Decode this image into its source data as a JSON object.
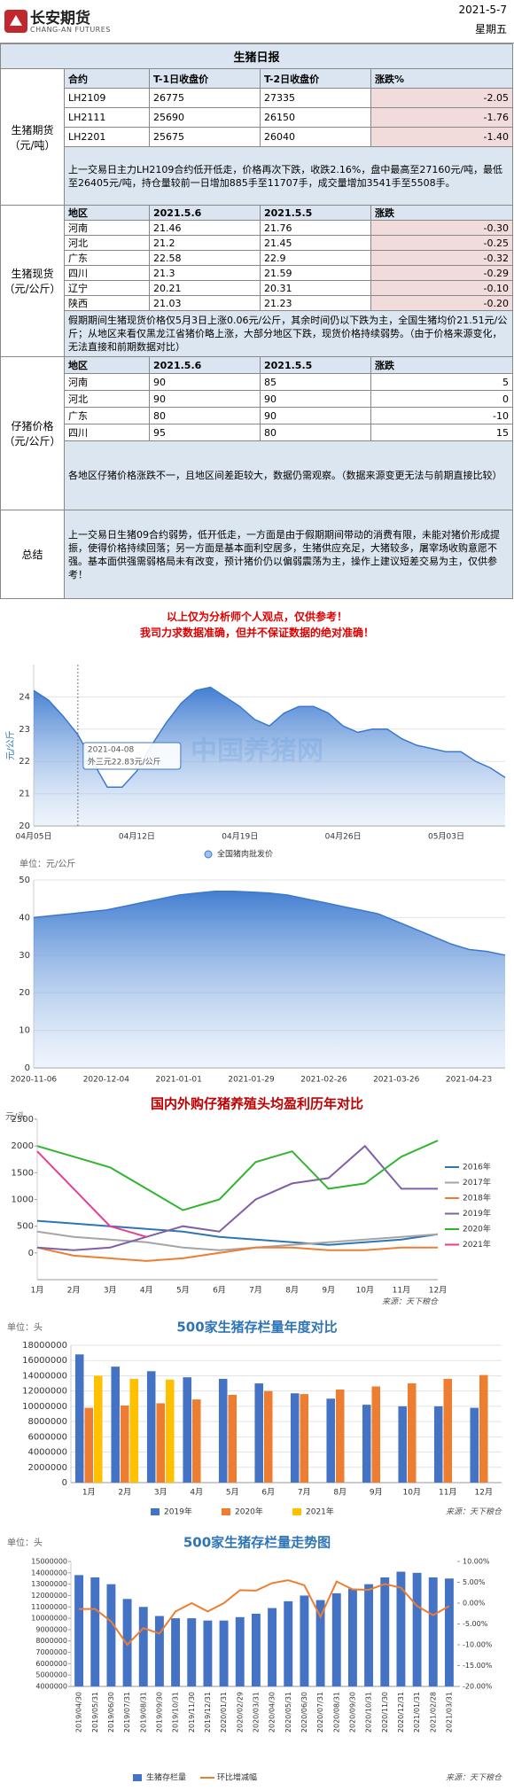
{
  "header": {
    "logo_cn": "长安期货",
    "logo_en": "CHANG-AN FUTURES",
    "date": "2021-5-7",
    "weekday": "星期五"
  },
  "report": {
    "title": "生猪日报",
    "change_bg": "#f2dcdb",
    "sections": [
      {
        "label": "生猪期货（元/吨）",
        "columns": [
          "合约",
          "T-1日收盘价",
          "T-2日收盘价",
          "涨跌%"
        ],
        "rows": [
          [
            "LH2109",
            "26775",
            "27335",
            "-2.05"
          ],
          [
            "LH2111",
            "25690",
            "26150",
            "-1.76"
          ],
          [
            "LH2201",
            "25675",
            "26040",
            "-1.40"
          ]
        ],
        "highlight_change": true,
        "note": "上一交易日主力LH2109合约低开低走，价格再次下跌，收跌2.16%，盘中最高至27160元/吨，最低至26405元/吨，持仓量较前一日增加885手至11707手，成交量增加3541手至5508手。"
      },
      {
        "label": "生猪现货（元/公斤）",
        "columns": [
          "地区",
          "2021.5.6",
          "2021.5.5",
          "涨跌"
        ],
        "rows": [
          [
            "河南",
            "21.46",
            "21.76",
            "-0.30"
          ],
          [
            "河北",
            "21.2",
            "21.45",
            "-0.25"
          ],
          [
            "广东",
            "22.58",
            "22.9",
            "-0.32"
          ],
          [
            "四川",
            "21.3",
            "21.59",
            "-0.29"
          ],
          [
            "辽宁",
            "20.21",
            "20.31",
            "-0.10"
          ],
          [
            "陕西",
            "21.03",
            "21.23",
            "-0.20"
          ]
        ],
        "highlight_change": true,
        "note": "假期期间生猪现货价格仅5月3日上涨0.06元/公斤，其余时间仍以下跌为主，全国生猪均价21.51元/公斤；从地区来看仅黑龙江省猪价略上涨，大部分地区下跌，现货价格持续弱势。（由于价格来源变化，无法直接和前期数据对比）"
      },
      {
        "label": "仔猪价格（元/公斤）",
        "columns": [
          "地区",
          "2021.5.6",
          "2021.5.5",
          "涨跌"
        ],
        "rows": [
          [
            "河南",
            "90",
            "85",
            "5"
          ],
          [
            "河北",
            "90",
            "90",
            "0"
          ],
          [
            "广东",
            "80",
            "90",
            "-10"
          ],
          [
            "四川",
            "95",
            "80",
            "15"
          ]
        ],
        "highlight_change": false,
        "note": "各地区仔猪价格涨跌不一，且地区间差距较大，数据仍需观察。（数据来源变更无法与前期直接比较）"
      },
      {
        "label": "总结",
        "note": "上一交易日生猪09合约弱势，低开低走，一方面是由于假期期间带动的消费有限，未能对猪价形成提振，使得价格持续回落；另一方面是基本面利空居多，生猪供应充足，大猪较多，屠宰场收购意愿不强。基本面供强需弱格局未有改变，预计猪价仍以偏弱震荡为主，操作上建议短差交易为主，仅供参考！"
      }
    ]
  },
  "disclaimer": [
    "以上仅为分析师个人观点，仅供参考！",
    "我司力求数据准确，但并不保证数据的绝对准确！"
  ],
  "chart_data": [
    {
      "type": "area",
      "y_label": "元/公斤",
      "watermark": "中国养猪网",
      "annotations": [
        "2021-04-08",
        "外三元22.83元/公斤"
      ],
      "categories": [
        "04月05日",
        null,
        null,
        null,
        null,
        null,
        null,
        "04月12日",
        null,
        null,
        null,
        null,
        null,
        null,
        "04月19日",
        null,
        null,
        null,
        null,
        null,
        null,
        "04月26日",
        null,
        null,
        null,
        null,
        null,
        null,
        "05月03日",
        null,
        null,
        null,
        null
      ],
      "series": [
        {
          "color": "#3a78cf",
          "values": [
            24.2,
            23.9,
            23.4,
            22.83,
            22.0,
            21.2,
            21.2,
            21.7,
            22.5,
            23.2,
            23.8,
            24.2,
            24.3,
            24.0,
            23.7,
            23.3,
            23.1,
            23.5,
            23.7,
            23.7,
            23.5,
            23.1,
            22.9,
            23.0,
            23.0,
            22.7,
            22.5,
            22.4,
            22.3,
            22.3,
            22.0,
            21.8,
            21.5
          ]
        }
      ],
      "ylim": [
        20,
        25
      ],
      "yticks": [
        20,
        21,
        22,
        23,
        24
      ],
      "grid": true
    },
    {
      "type": "area",
      "unit_label": "单位：元/公斤",
      "legend": "top",
      "categories": [
        "2020-11-06",
        null,
        null,
        null,
        "2020-12-04",
        null,
        null,
        null,
        "2021-01-01",
        null,
        null,
        null,
        "2021-01-29",
        null,
        null,
        null,
        "2021-02-26",
        null,
        null,
        null,
        "2021-03-26",
        null,
        null,
        null,
        "2021-04-23",
        null,
        null
      ],
      "series": [
        {
          "name": "全国猪肉批发价",
          "color": "#3a78cf",
          "values": [
            40,
            40.5,
            41,
            41.5,
            42,
            43,
            44,
            45,
            46,
            46.5,
            47,
            47,
            46.8,
            46.5,
            46,
            45,
            44,
            43,
            42,
            41,
            39,
            37,
            35,
            33,
            31.5,
            31,
            30
          ]
        }
      ],
      "ylim": [
        0,
        50
      ],
      "yticks": [
        0,
        10,
        20,
        30,
        40,
        50
      ],
      "grid": true
    },
    {
      "type": "line",
      "title": "国内外购仔猪养殖头均盈利历年对比",
      "title_color": "#c00000",
      "unit_label": "元/头",
      "source": "来源：天下粮仓",
      "legend": "right",
      "categories": [
        "1月",
        "2月",
        "3月",
        "4月",
        "5月",
        "6月",
        "7月",
        "8月",
        "9月",
        "10月",
        "11月",
        "12月"
      ],
      "series": [
        {
          "name": "2016年",
          "color": "#2e75b6",
          "values": [
            600,
            550,
            500,
            450,
            400,
            300,
            250,
            200,
            150,
            200,
            250,
            350
          ]
        },
        {
          "name": "2017年",
          "color": "#a5a5a5",
          "values": [
            400,
            300,
            250,
            200,
            100,
            50,
            100,
            150,
            200,
            250,
            300,
            350
          ]
        },
        {
          "name": "2018年",
          "color": "#ed7d31",
          "values": [
            100,
            -50,
            -100,
            -150,
            -100,
            0,
            100,
            100,
            50,
            50,
            100,
            100
          ]
        },
        {
          "name": "2019年",
          "color": "#7f60a8",
          "values": [
            100,
            50,
            100,
            300,
            500,
            400,
            1000,
            1300,
            1400,
            2000,
            1200,
            1200
          ]
        },
        {
          "name": "2020年",
          "color": "#2fb52f",
          "values": [
            2000,
            1800,
            1600,
            1200,
            800,
            1000,
            1700,
            1900,
            1200,
            1300,
            1800,
            2100
          ]
        },
        {
          "name": "2021年",
          "color": "#e83e8c",
          "values": [
            1900,
            1200,
            500,
            300,
            null,
            null,
            null,
            null,
            null,
            null,
            null,
            null
          ]
        }
      ],
      "ylim": [
        -500,
        2500
      ],
      "yticks": [
        0,
        500,
        1000,
        1500,
        2000,
        2500
      ],
      "grid": false
    },
    {
      "type": "bar",
      "title": "500家生猪存栏量年度对比",
      "title_color": "#2e75b6",
      "unit_label": "单位：头",
      "source": "来源：天下粮仓",
      "legend": "bottom",
      "categories": [
        "1月",
        "2月",
        "3月",
        "4月",
        "5月",
        "6月",
        "7月",
        "8月",
        "9月",
        "10月",
        "11月",
        "12月"
      ],
      "series": [
        {
          "name": "2019年",
          "color": "#4472c4",
          "values": [
            16800000,
            15200000,
            14600000,
            13800000,
            13600000,
            13000000,
            11700000,
            11000000,
            10200000,
            10000000,
            10000000,
            9800000
          ]
        },
        {
          "name": "2020年",
          "color": "#ed7d31",
          "values": [
            9800000,
            10100000,
            10400000,
            10900000,
            11500000,
            12000000,
            11600000,
            12200000,
            12600000,
            13000000,
            13600000,
            14100000
          ]
        },
        {
          "name": "2021年",
          "color": "#ffc000",
          "values": [
            14000000,
            13600000,
            13500000,
            null,
            null,
            null,
            null,
            null,
            null,
            null,
            null,
            null
          ]
        }
      ],
      "ylim": [
        0,
        18000000
      ],
      "yticks": [
        0,
        2000000,
        4000000,
        6000000,
        8000000,
        10000000,
        12000000,
        14000000,
        16000000,
        18000000
      ],
      "grid": true
    },
    {
      "type": "bar",
      "title": "500家生猪存栏量走势图",
      "title_color": "#2e75b6",
      "unit_label": "单位：头",
      "source": "来源：天下粮仓",
      "legend": "bottom",
      "categories": [
        "2019/04/30",
        "2019/05/31",
        "2019/06/30",
        "2019/07/31",
        "2019/08/31",
        "2019/09/30",
        "2019/10/31",
        "2019/11/30",
        "2019/12/31",
        "2020/01/31",
        "2020/02/29",
        "2020/03/31",
        "2020/04/30",
        "2020/05/31",
        "2020/06/30",
        "2020/07/31",
        "2020/08/31",
        "2020/09/30",
        "2020/10/31",
        "2020/11/30",
        "2020/12/31",
        "2021/01/31",
        "2021/02/28",
        "2021/03/31"
      ],
      "series": [
        {
          "name": "生猪存栏量",
          "color": "#4472c4",
          "values": [
            13800000,
            13600000,
            13000000,
            11700000,
            11000000,
            10200000,
            10000000,
            10000000,
            9800000,
            9800000,
            10100000,
            10400000,
            10900000,
            11500000,
            12000000,
            11600000,
            12200000,
            12600000,
            13000000,
            13600000,
            14100000,
            14000000,
            13600000,
            13500000
          ]
        },
        {
          "name": "环比增减幅",
          "type": "line",
          "axis": "y2",
          "color": "#ed7d31",
          "values": [
            -1.4,
            -1.4,
            -4.4,
            -10,
            -6,
            -7.3,
            -2,
            0,
            -2,
            0,
            3.1,
            3,
            4.8,
            5.5,
            4.3,
            -3.3,
            5.2,
            3.3,
            3.2,
            4.6,
            3.7,
            -0.7,
            -2.9,
            -0.7
          ]
        }
      ],
      "ylim": [
        4000000,
        15000000
      ],
      "yticks": [
        4000000,
        5000000,
        6000000,
        7000000,
        8000000,
        9000000,
        10000000,
        11000000,
        12000000,
        13000000,
        14000000,
        15000000
      ],
      "y2lim": [
        -20,
        10
      ],
      "y2ticks": [
        {
          "value": -20,
          "label": "-20.00%"
        },
        {
          "value": -15,
          "label": "-15.00%"
        },
        {
          "value": -10,
          "label": "-10.00%"
        },
        {
          "value": -5,
          "label": "-5.00%"
        },
        {
          "value": 0,
          "label": "0.00%"
        },
        {
          "value": 5,
          "label": "5.00%"
        },
        {
          "value": 10,
          "label": "10.00%"
        }
      ],
      "grid": false
    }
  ]
}
